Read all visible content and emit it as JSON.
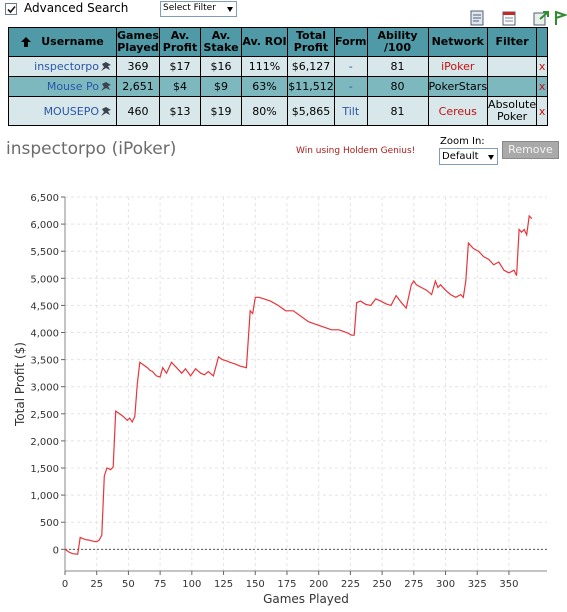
{
  "toolbar": {
    "advanced_search_label": "Advanced Search",
    "advanced_search_checked": true,
    "filter_select_value": "Select Filter",
    "icons": [
      "export-icon",
      "notes-icon",
      "refresh-icon"
    ]
  },
  "table": {
    "columns": [
      "Username",
      "Games Played",
      "Av. Profit",
      "Av. Stake",
      "Av. ROI",
      "Total Profit",
      "Form",
      "Ability /100",
      "Network",
      "Filter"
    ],
    "rows": [
      {
        "username": "inspectorpo",
        "games": "369",
        "av_profit": "$17",
        "av_stake": "$16",
        "roi": "111%",
        "total": "$6,127",
        "form": "-",
        "ability": "81",
        "network": "iPoker",
        "filter": "",
        "remove": "x"
      },
      {
        "username": "Mouse Po",
        "games": "2,651",
        "av_profit": "$4",
        "av_stake": "$9",
        "roi": "63%",
        "total": "$11,512",
        "form": "-",
        "ability": "80",
        "network": "PokerStars",
        "filter": "",
        "remove": "x"
      },
      {
        "username": "MOUSEPO",
        "games": "460",
        "av_profit": "$13",
        "av_stake": "$19",
        "roi": "80%",
        "total": "$5,865",
        "form": "Tilt",
        "ability": "81",
        "network": "Cereus",
        "filter": "Absolute Poker",
        "remove": "x"
      }
    ]
  },
  "player": {
    "title": "inspectorpo (iPoker)",
    "link": "Win using Holdem Genius!",
    "zoom_label": "Zoom In:",
    "zoom_value": "Default",
    "remove_label": "Remove"
  },
  "colors": {
    "header": "#4f9aa6",
    "row_light": "#d8e7ea",
    "row_dark": "#7eb8bf",
    "line": "#e8343a",
    "link": "#2a56a8",
    "network": "#c41010"
  },
  "chart_data": {
    "type": "line",
    "title": "",
    "xlabel": "Games Played",
    "ylabel": "Total Profit ($)",
    "xlim": [
      0,
      380
    ],
    "ylim": [
      -400,
      6500
    ],
    "xticks": [
      0,
      25,
      50,
      75,
      100,
      125,
      150,
      175,
      200,
      225,
      250,
      275,
      300,
      325,
      350
    ],
    "yticks": [
      0,
      500,
      1000,
      1500,
      2000,
      2500,
      3000,
      3500,
      4000,
      4500,
      5000,
      5500,
      6000,
      6500
    ],
    "grid": true,
    "zero_line": true,
    "series": [
      {
        "x": [
          0,
          3,
          6,
          10,
          12,
          14,
          16,
          19,
          22,
          25,
          27,
          29,
          31,
          33,
          36,
          38,
          40,
          43,
          46,
          49,
          51,
          53,
          55,
          57,
          59,
          62,
          65,
          67,
          69,
          72,
          75,
          77,
          80,
          84,
          88,
          92,
          95,
          99,
          103,
          107,
          110,
          113,
          117,
          121,
          124,
          127,
          130,
          134,
          138,
          143,
          146,
          148,
          150,
          153,
          157,
          162,
          168,
          174,
          180,
          186,
          192,
          198,
          204,
          210,
          216,
          222,
          226,
          228,
          230,
          233,
          237,
          241,
          245,
          249,
          253,
          257,
          261,
          265,
          269,
          273,
          275,
          277,
          281,
          285,
          289,
          292,
          294,
          296,
          300,
          304,
          308,
          312,
          314,
          316,
          318,
          322,
          326,
          330,
          334,
          338,
          342,
          346,
          350,
          354,
          356,
          358,
          360,
          362,
          364,
          366,
          368
        ],
        "y": [
          0,
          -50,
          -80,
          -90,
          220,
          200,
          180,
          170,
          150,
          140,
          170,
          260,
          1350,
          1500,
          1470,
          1520,
          2550,
          2500,
          2450,
          2380,
          2420,
          2350,
          2450,
          3050,
          3450,
          3400,
          3350,
          3300,
          3280,
          3200,
          3180,
          3350,
          3250,
          3450,
          3350,
          3250,
          3330,
          3200,
          3330,
          3250,
          3220,
          3280,
          3200,
          3550,
          3500,
          3480,
          3450,
          3420,
          3380,
          3350,
          4400,
          4350,
          4650,
          4650,
          4620,
          4580,
          4500,
          4400,
          4400,
          4300,
          4200,
          4150,
          4100,
          4050,
          4050,
          4000,
          3950,
          3950,
          4550,
          4580,
          4520,
          4500,
          4620,
          4580,
          4530,
          4500,
          4680,
          4560,
          4450,
          4880,
          4950,
          4880,
          4830,
          4780,
          4700,
          4950,
          4830,
          4880,
          4780,
          4700,
          4650,
          4700,
          4650,
          4950,
          5650,
          5550,
          5500,
          5400,
          5350,
          5250,
          5300,
          5150,
          5100,
          5150,
          5050,
          5900,
          5850,
          5900,
          5800,
          6150,
          6100
        ]
      }
    ]
  }
}
